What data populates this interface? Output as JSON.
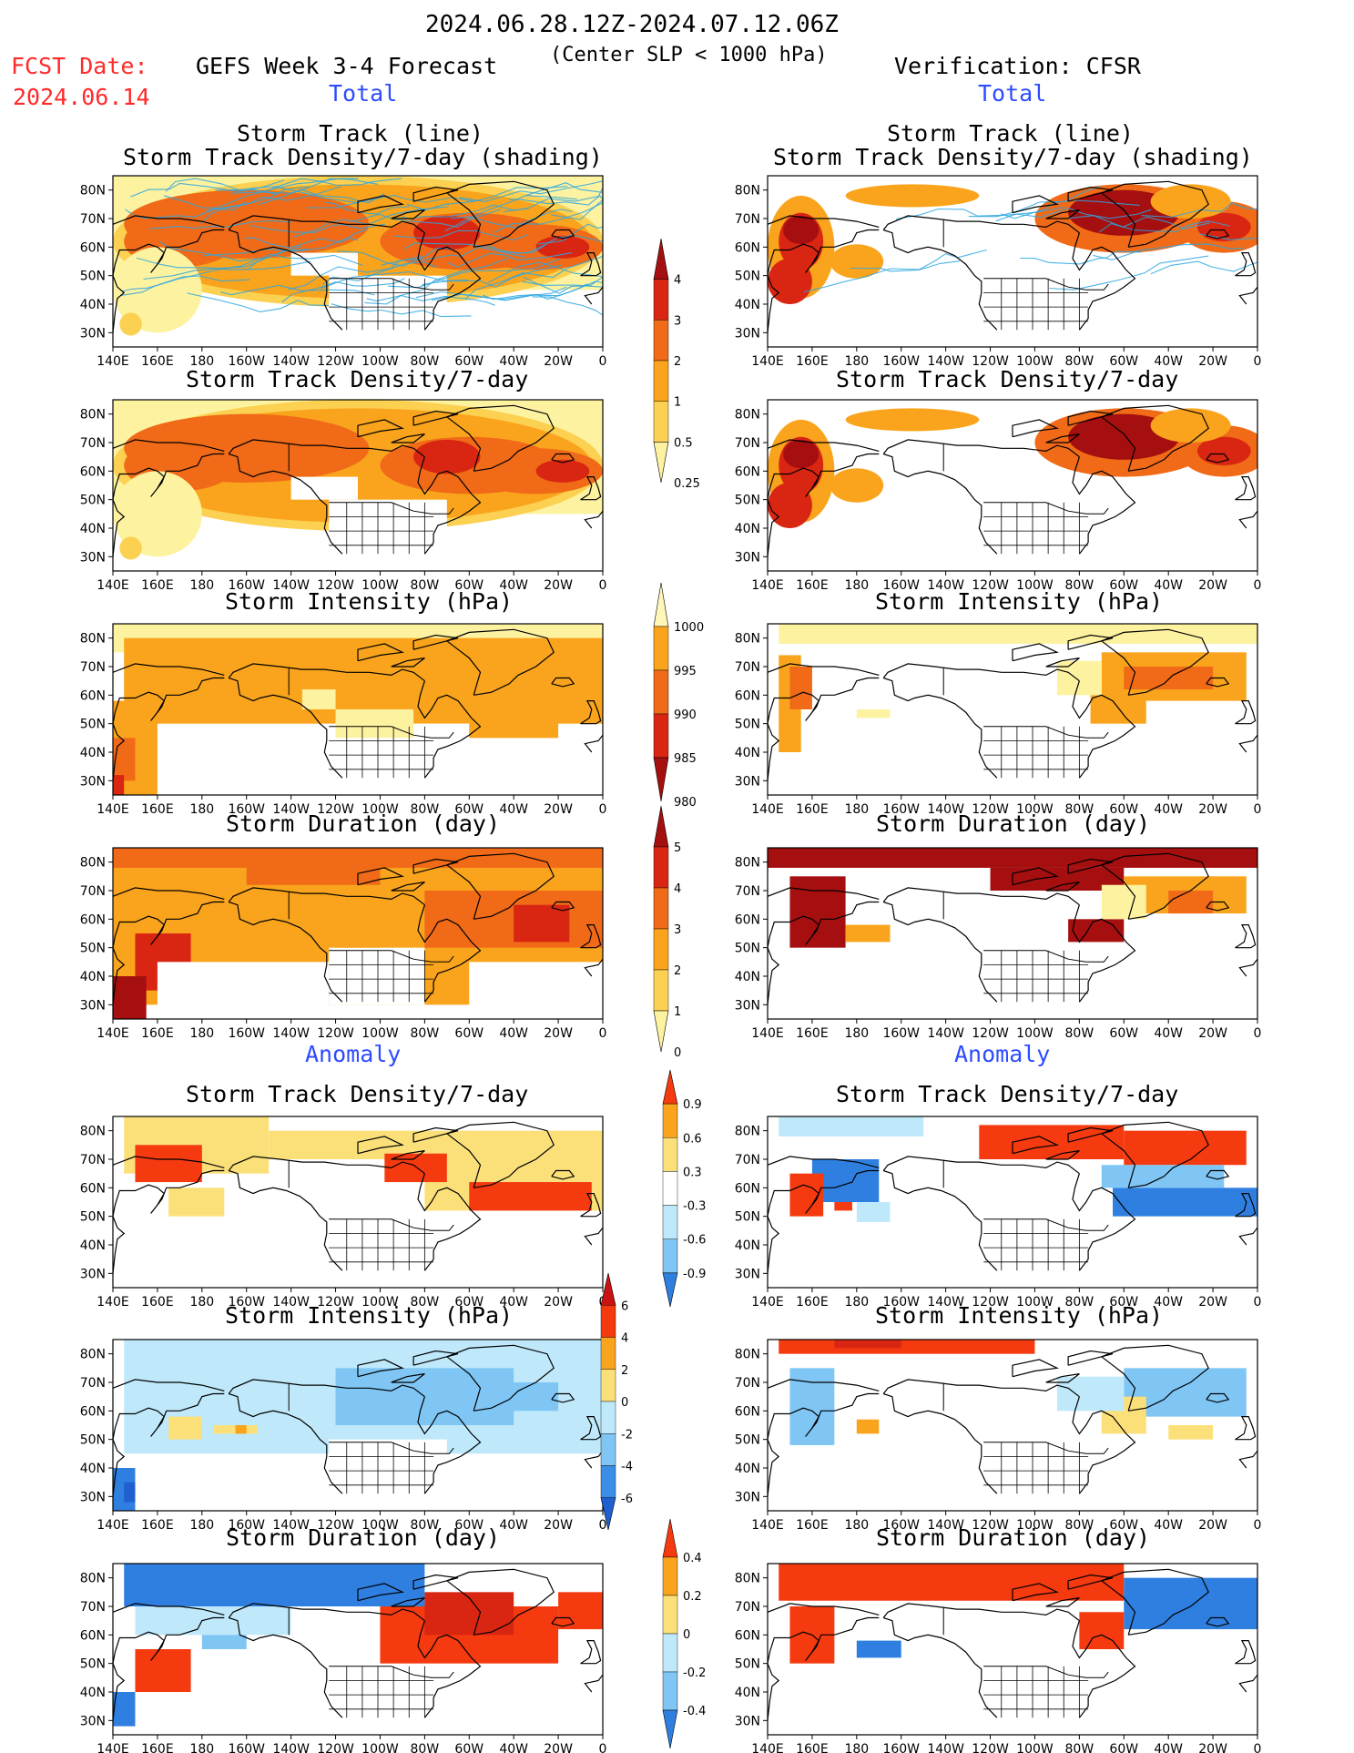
{
  "header": {
    "period": "2024.06.28.12Z-2024.07.12.06Z",
    "fcst_label": "FCST Date:",
    "fcst_date": "2024.06.14",
    "forecast_title": "GEFS Week 3-4 Forecast",
    "slp_note": "(Center SLP < 1000 hPa)",
    "verification_title": "Verification: CFSR"
  },
  "sections": {
    "total": "Total",
    "anomaly": "Anomaly"
  },
  "panel_titles": {
    "track_line": "Storm Track (line)",
    "track_density_shading": "Storm Track Density/7-day (shading)",
    "track_density": "Storm Track Density/7-day",
    "intensity": "Storm Intensity (hPa)",
    "duration": "Storm Duration (day)"
  },
  "axes": {
    "lat_ticks": [
      "80N",
      "70N",
      "60N",
      "50N",
      "40N",
      "30N"
    ],
    "lon_ticks": [
      "140E",
      "160E",
      "180",
      "160W",
      "140W",
      "120W",
      "100W",
      "80W",
      "60W",
      "40W",
      "20W",
      "0"
    ]
  },
  "colorbars": {
    "density": {
      "labels": [
        "4",
        "3",
        "2",
        "1",
        "0.5",
        "0.25"
      ],
      "colors": [
        "#a50f0f",
        "#d92612",
        "#f06a18",
        "#f9a41c",
        "#fcd050",
        "#fdf2a0"
      ]
    },
    "intensity": {
      "labels": [
        "1000",
        "995",
        "990",
        "985",
        "980"
      ],
      "colors": [
        "#fef7b8",
        "#f9a41c",
        "#f06a18",
        "#d92612",
        "#a50f0f"
      ]
    },
    "duration": {
      "labels": [
        "5",
        "4",
        "3",
        "2",
        "1",
        "0"
      ],
      "colors": [
        "#a50f0f",
        "#d92612",
        "#f06a18",
        "#f9a41c",
        "#fcd050",
        "#fdf2a0"
      ]
    },
    "anom_density": {
      "labels": [
        "0.9",
        "0.6",
        "0.3",
        "-0.3",
        "-0.6",
        "-0.9"
      ],
      "colors": [
        "#f53a10",
        "#f9a41c",
        "#fbe07a",
        "#ffffff",
        "#bfe9fb",
        "#7fc6f5",
        "#2f7fe0"
      ]
    },
    "anom_intensity": {
      "labels": [
        "6",
        "4",
        "2",
        "0",
        "-2",
        "-4",
        "-6"
      ],
      "colors": [
        "#c91212",
        "#f53a10",
        "#f9a41c",
        "#fbe07a",
        "#bfe9fb",
        "#7fc6f5",
        "#3a8ee8",
        "#1f5fd0"
      ]
    },
    "anom_duration": {
      "labels": [
        "0.4",
        "0.2",
        "0",
        "-0.2",
        "-0.4"
      ],
      "colors": [
        "#f53a10",
        "#f9a41c",
        "#fbe07a",
        "#bfe9fb",
        "#7fc6f5",
        "#2f7fe0"
      ]
    }
  },
  "chart_data": [
    {
      "type": "heatmap",
      "panel": "forecast",
      "title": "Storm Track (line) / Storm Track Density/7-day (shading)",
      "xlabel": "",
      "ylabel": "",
      "region": "140E-0, 25N-85N",
      "overlay": "storm track lines"
    },
    {
      "type": "heatmap",
      "panel": "verification",
      "title": "Storm Track (line) / Storm Track Density/7-day (shading)",
      "region": "140E-0, 25N-85N",
      "overlay": "storm track lines"
    },
    {
      "type": "heatmap",
      "panel": "forecast",
      "title": "Storm Track Density/7-day",
      "range": [
        0.25,
        4
      ]
    },
    {
      "type": "heatmap",
      "panel": "verification",
      "title": "Storm Track Density/7-day",
      "range": [
        0.25,
        4
      ]
    },
    {
      "type": "heatmap",
      "panel": "forecast",
      "title": "Storm Intensity (hPa)",
      "range": [
        980,
        1000
      ]
    },
    {
      "type": "heatmap",
      "panel": "verification",
      "title": "Storm Intensity (hPa)",
      "range": [
        980,
        1000
      ]
    },
    {
      "type": "heatmap",
      "panel": "forecast",
      "title": "Storm Duration (day)",
      "range": [
        0,
        5
      ]
    },
    {
      "type": "heatmap",
      "panel": "verification",
      "title": "Storm Duration (day)",
      "range": [
        0,
        5
      ]
    },
    {
      "type": "heatmap",
      "panel": "forecast",
      "section": "Anomaly",
      "title": "Storm Track Density/7-day",
      "range": [
        -0.9,
        0.9
      ]
    },
    {
      "type": "heatmap",
      "panel": "verification",
      "section": "Anomaly",
      "title": "Storm Track Density/7-day",
      "range": [
        -0.9,
        0.9
      ]
    },
    {
      "type": "heatmap",
      "panel": "forecast",
      "section": "Anomaly",
      "title": "Storm Intensity (hPa)",
      "range": [
        -6,
        6
      ]
    },
    {
      "type": "heatmap",
      "panel": "verification",
      "section": "Anomaly",
      "title": "Storm Intensity (hPa)",
      "range": [
        -6,
        6
      ]
    },
    {
      "type": "heatmap",
      "panel": "forecast",
      "section": "Anomaly",
      "title": "Storm Duration (day)",
      "range": [
        -0.4,
        0.4
      ]
    },
    {
      "type": "heatmap",
      "panel": "verification",
      "section": "Anomaly",
      "title": "Storm Duration (day)",
      "range": [
        -0.4,
        0.4
      ]
    }
  ]
}
